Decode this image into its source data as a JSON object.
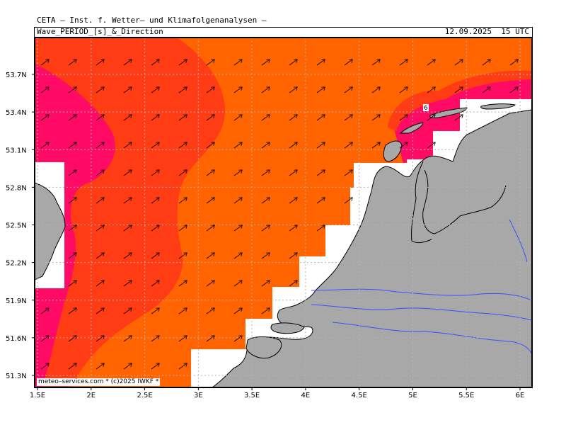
{
  "header": {
    "title": "CETA – Inst. f. Wetter– und Klimafolgenanalysen –",
    "subtitle": "Wave_PERIOD_[s]_&_Direction",
    "timestamp": "12.09.2025  15 UTC"
  },
  "axes": {
    "lat_labels": [
      "53.7N",
      "53.4N",
      "53.1N",
      "52.8N",
      "52.5N",
      "52.2N",
      "51.9N",
      "51.6N",
      "51.3N"
    ],
    "lon_labels": [
      "1.5E",
      "2E",
      "2.5E",
      "3E",
      "3.5E",
      "4E",
      "4.5E",
      "5E",
      "5.5E",
      "6E"
    ]
  },
  "legend_marks": {
    "contour_label": "6"
  },
  "footer": {
    "credit": "meteo–services.com * (c)2025 IWKF *"
  },
  "colors": {
    "period_high": "#ff0a64",
    "period_mid": "#ff3c14",
    "period_low": "#ff6400",
    "land": "#a8a8a8",
    "river": "#3c50ff",
    "grid": "#b4b4b4",
    "arrow": "#000000"
  },
  "icons": {
    "wave_direction": "arrow-northeast-icon"
  }
}
